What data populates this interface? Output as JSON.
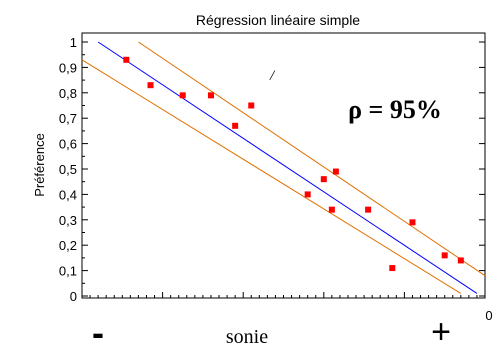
{
  "chart_data": {
    "type": "scatter",
    "title": "Régression linéaire simple",
    "ylabel": "Préférence",
    "xlabel": "sonie",
    "x_min_label": "-",
    "x_max_label": "+",
    "x_corner_tick": "0",
    "annotation": "ρ = 95%",
    "stray_mark": "/",
    "xlim": [
      0,
      1
    ],
    "ylim": [
      0,
      1
    ],
    "yticks": [
      {
        "value": 0,
        "label": "0"
      },
      {
        "value": 0.1,
        "label": "0,1"
      },
      {
        "value": 0.2,
        "label": "0,2"
      },
      {
        "value": 0.3,
        "label": "0,3"
      },
      {
        "value": 0.4,
        "label": "0,4"
      },
      {
        "value": 0.5,
        "label": "0,5"
      },
      {
        "value": 0.6,
        "label": "0,6"
      },
      {
        "value": 0.7,
        "label": "0,7"
      },
      {
        "value": 0.8,
        "label": "0,8"
      },
      {
        "value": 0.9,
        "label": "0,9"
      },
      {
        "value": 1,
        "label": "1"
      }
    ],
    "points": [
      {
        "x": 0.11,
        "y": 0.93
      },
      {
        "x": 0.17,
        "y": 0.83
      },
      {
        "x": 0.25,
        "y": 0.79
      },
      {
        "x": 0.32,
        "y": 0.79
      },
      {
        "x": 0.38,
        "y": 0.67
      },
      {
        "x": 0.42,
        "y": 0.75
      },
      {
        "x": 0.56,
        "y": 0.4
      },
      {
        "x": 0.6,
        "y": 0.46
      },
      {
        "x": 0.63,
        "y": 0.49
      },
      {
        "x": 0.62,
        "y": 0.34
      },
      {
        "x": 0.71,
        "y": 0.34
      },
      {
        "x": 0.77,
        "y": 0.11
      },
      {
        "x": 0.82,
        "y": 0.29
      },
      {
        "x": 0.9,
        "y": 0.16
      },
      {
        "x": 0.94,
        "y": 0.14
      }
    ],
    "regression_line": {
      "x": [
        0.04,
        0.98
      ],
      "y": [
        1.0,
        0.01
      ],
      "color": "#0000ff"
    },
    "confidence_band": {
      "upper": {
        "x": [
          0.14,
          1.0
        ],
        "y": [
          1.0,
          0.08
        ]
      },
      "lower": {
        "x": [
          0.0,
          0.94
        ],
        "y": [
          0.93,
          0.01
        ]
      },
      "color": "#e07000"
    },
    "marker_color": "#ff0000",
    "grid": false,
    "legend": "none"
  }
}
